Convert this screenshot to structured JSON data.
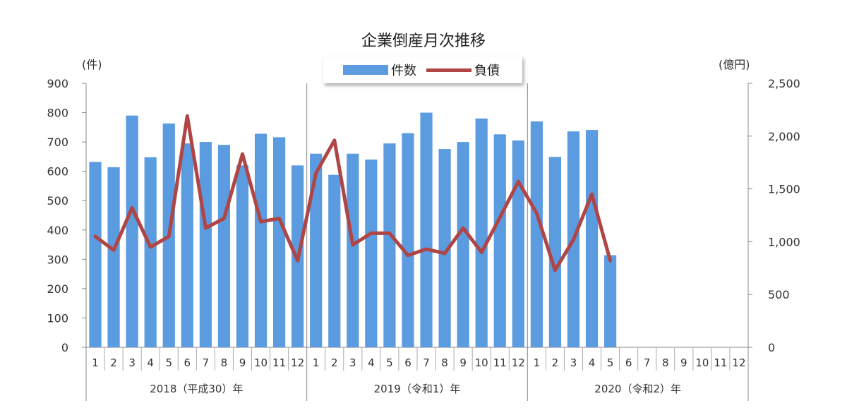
{
  "chart_data": {
    "type": "bar",
    "title": "企業倒産月次推移",
    "ylabel_left": "(件)",
    "ylabel_right": "(億円)",
    "ylim_left": [
      0,
      900
    ],
    "ylim_right": [
      0,
      2500
    ],
    "yticks_left": [
      "0",
      "100",
      "200",
      "300",
      "400",
      "500",
      "600",
      "700",
      "800",
      "900"
    ],
    "yticks_right": [
      "0",
      "500",
      "1,000",
      "1,500",
      "2,000",
      "2,500"
    ],
    "months": [
      "1",
      "2",
      "3",
      "4",
      "5",
      "6",
      "7",
      "8",
      "9",
      "10",
      "11",
      "12",
      "1",
      "2",
      "3",
      "4",
      "5",
      "6",
      "7",
      "8",
      "9",
      "10",
      "11",
      "12",
      "1",
      "2",
      "3",
      "4",
      "5",
      "6",
      "7",
      "8",
      "9",
      "10",
      "11",
      "12"
    ],
    "years": [
      "2018（平成30）年",
      "2019（令和1）年",
      "2020（令和2）年"
    ],
    "legend": [
      "件数",
      "負債"
    ],
    "colors": {
      "bar": "#5B9BE0",
      "line": "#B04545"
    },
    "series": [
      {
        "name": "件数",
        "axis": "left",
        "type": "bar",
        "values": [
          632,
          614,
          790,
          648,
          763,
          695,
          700,
          690,
          620,
          728,
          716,
          620,
          660,
          588,
          660,
          640,
          695,
          730,
          800,
          676,
          700,
          780,
          726,
          705,
          770,
          649,
          736,
          741,
          314,
          null,
          null,
          null,
          null,
          null,
          null,
          null
        ]
      },
      {
        "name": "負債",
        "axis": "right",
        "type": "line",
        "values": [
          1050,
          920,
          1320,
          950,
          1050,
          2190,
          1130,
          1220,
          1830,
          1190,
          1220,
          820,
          1650,
          1960,
          970,
          1080,
          1080,
          870,
          930,
          890,
          1130,
          900,
          1230,
          1570,
          1270,
          730,
          1020,
          1450,
          820,
          null,
          null,
          null,
          null,
          null,
          null,
          null
        ]
      }
    ],
    "grid": false
  }
}
